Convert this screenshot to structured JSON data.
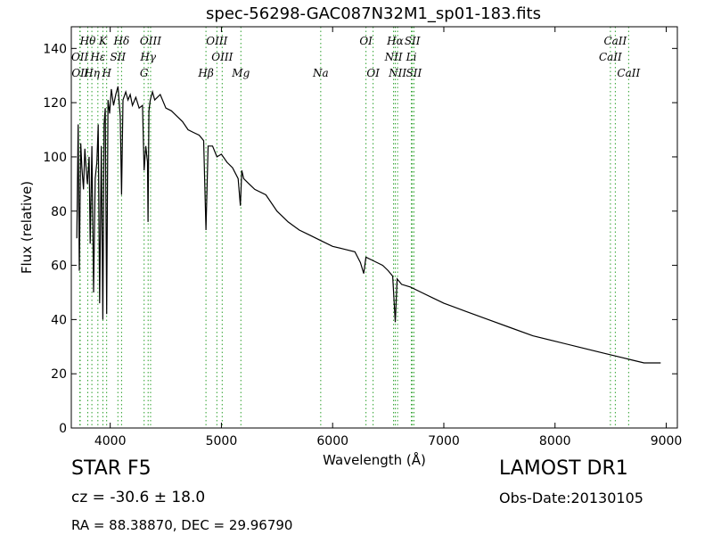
{
  "chart_data": {
    "type": "line",
    "title": "spec-56298-GAC087N32M1_sp01-183.fits",
    "xlabel": "Wavelength (Å)",
    "ylabel": "Flux (relative)",
    "xlim": [
      3650,
      9100
    ],
    "ylim": [
      0,
      148
    ],
    "xticks": [
      4000,
      5000,
      6000,
      7000,
      8000,
      9000
    ],
    "yticks": [
      0,
      20,
      40,
      60,
      80,
      100,
      120,
      140
    ],
    "grid": false,
    "line_color": "#000000",
    "marker_color": "#2ca02c",
    "series": [
      {
        "x": [
          3700,
          3712,
          3722,
          3735,
          3745,
          3760,
          3772,
          3785,
          3795,
          3810,
          3820,
          3835,
          3850,
          3865,
          3880,
          3892,
          3905,
          3920,
          3934,
          3945,
          3955,
          3968,
          3980,
          3995,
          4010,
          4030,
          4050,
          4070,
          4090,
          4102,
          4115,
          4140,
          4160,
          4180,
          4200,
          4230,
          4260,
          4290,
          4305,
          4320,
          4335,
          4340,
          4348,
          4360,
          4380,
          4400,
          4450,
          4500,
          4550,
          4600,
          4650,
          4700,
          4750,
          4800,
          4840,
          4861,
          4880,
          4920,
          4960,
          5000,
          5050,
          5100,
          5150,
          5170,
          5183,
          5200,
          5250,
          5300,
          5400,
          5500,
          5600,
          5700,
          5800,
          5900,
          6000,
          6100,
          6200,
          6250,
          6280,
          6300,
          6350,
          6400,
          6450,
          6500,
          6540,
          6563,
          6580,
          6620,
          6700,
          6800,
          6900,
          7000,
          7200,
          7400,
          7600,
          7800,
          8000,
          8200,
          8400,
          8500,
          8600,
          8700,
          8800,
          8900,
          8950
        ],
        "y": [
          70,
          112,
          58,
          105,
          96,
          88,
          103,
          95,
          90,
          100,
          68,
          104,
          50,
          92,
          98,
          112,
          46,
          104,
          40,
          112,
          118,
          42,
          121,
          116,
          125,
          119,
          123,
          126,
          115,
          86,
          121,
          124,
          121,
          123,
          119,
          122,
          118,
          119,
          95,
          104,
          98,
          76,
          117,
          121,
          124,
          121,
          123,
          118,
          117,
          115,
          113,
          110,
          109,
          108,
          106,
          73,
          104,
          104,
          100,
          101,
          98,
          96,
          92,
          82,
          95,
          92,
          90,
          88,
          86,
          80,
          76,
          73,
          71,
          69,
          67,
          66,
          65,
          61,
          57,
          63,
          62,
          61,
          60,
          58,
          56,
          39,
          55,
          53,
          52,
          50,
          48,
          46,
          43,
          40,
          37,
          34,
          32,
          30,
          28,
          27,
          26,
          25,
          24,
          24,
          24
        ]
      }
    ],
    "lines_top": [
      {
        "label": "Hθ",
        "x": 3798
      },
      {
        "label": "K",
        "x": 3934
      },
      {
        "label": "Hδ",
        "x": 4102
      },
      {
        "label": "OIII",
        "x": 4363
      },
      {
        "label": "OIII",
        "x": 4959
      },
      {
        "label": "OI",
        "x": 6300
      },
      {
        "label": "Hα",
        "x": 6563
      },
      {
        "label": "SII",
        "x": 6717
      },
      {
        "label": "CaII",
        "x": 8542
      }
    ],
    "lines_mid": [
      {
        "label": "OII",
        "x": 3727
      },
      {
        "label": "Hε",
        "x": 3889
      },
      {
        "label": "SII",
        "x": 4069
      },
      {
        "label": "Hγ",
        "x": 4341
      },
      {
        "label": "OIII",
        "x": 5007
      },
      {
        "label": "NII",
        "x": 6548
      },
      {
        "label": "Li",
        "x": 6708
      },
      {
        "label": "CaII",
        "x": 8498
      }
    ],
    "lines_low": [
      {
        "label": "OII",
        "x": 3730
      },
      {
        "label": "Hη",
        "x": 3835
      },
      {
        "label": "H",
        "x": 3968
      },
      {
        "label": "G",
        "x": 4305
      },
      {
        "label": "Hβ",
        "x": 4861
      },
      {
        "label": "Mg",
        "x": 5175
      },
      {
        "label": "Na",
        "x": 5893
      },
      {
        "label": "OI",
        "x": 6364
      },
      {
        "label": "NII",
        "x": 6584
      },
      {
        "label": "SII",
        "x": 6731
      },
      {
        "label": "CaII",
        "x": 8662
      }
    ]
  },
  "info": {
    "object_type": "STAR   F5",
    "survey": "LAMOST DR1",
    "cz": "cz = -30.6 ± 18.0",
    "obs_date": "Obs-Date:20130105",
    "radec": "RA = 88.38870, DEC = 29.96790"
  }
}
